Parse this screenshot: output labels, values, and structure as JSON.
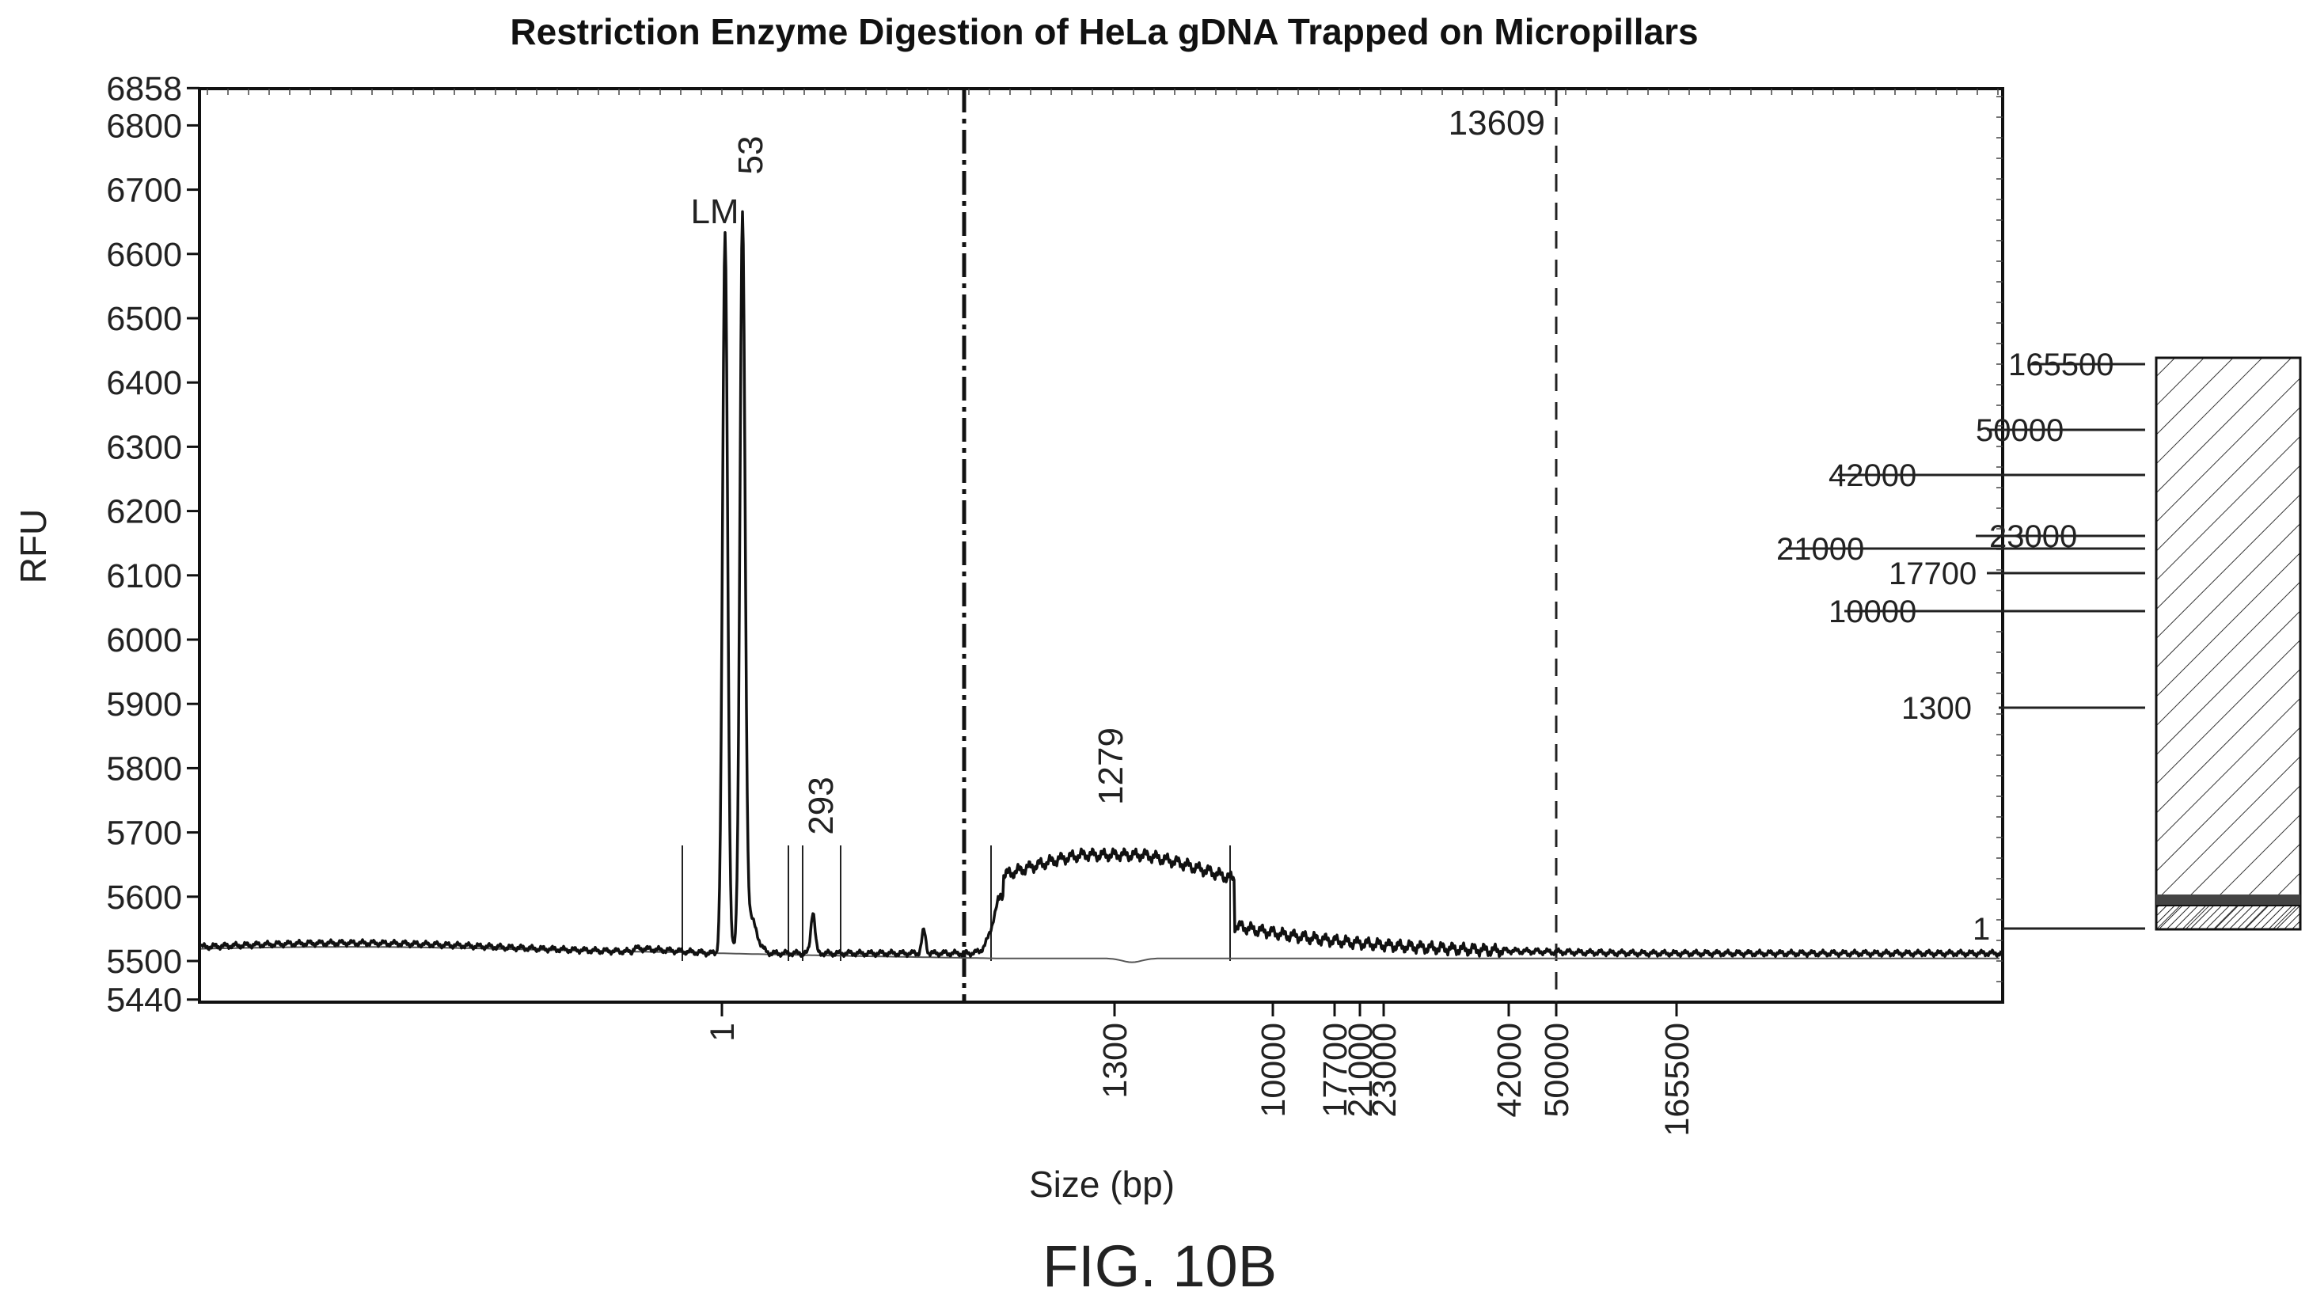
{
  "chart_data": {
    "type": "line",
    "title": "Restriction Enzyme Digestion of HeLa gDNA Trapped on Micropillars",
    "xlabel": "Size (bp)",
    "ylabel": "RFU",
    "figure_label": "FIG. 10B",
    "ylim": [
      5440,
      6858
    ],
    "y_ticks": [
      5440,
      5500,
      5600,
      5700,
      5800,
      5900,
      6000,
      6100,
      6200,
      6300,
      6400,
      6500,
      6600,
      6700,
      6800,
      6858
    ],
    "x_ticks": [
      "1",
      "1300",
      "10000",
      "17700",
      "21000",
      "23000",
      "42000",
      "50000",
      "165500"
    ],
    "peaks": [
      {
        "label": "LM",
        "rfu": 6630
      },
      {
        "label": "53",
        "rfu": 6620
      },
      {
        "label": "293",
        "rfu": 5570
      },
      {
        "label": "1279",
        "rfu": 5665
      }
    ],
    "reference_lines": [
      {
        "label": "13609",
        "style": "dashed"
      }
    ],
    "ladder_labels": [
      "165500",
      "50000",
      "42000",
      "23000",
      "21000",
      "17700",
      "10000",
      "1300",
      "1"
    ],
    "grid": false,
    "legend": "none"
  }
}
